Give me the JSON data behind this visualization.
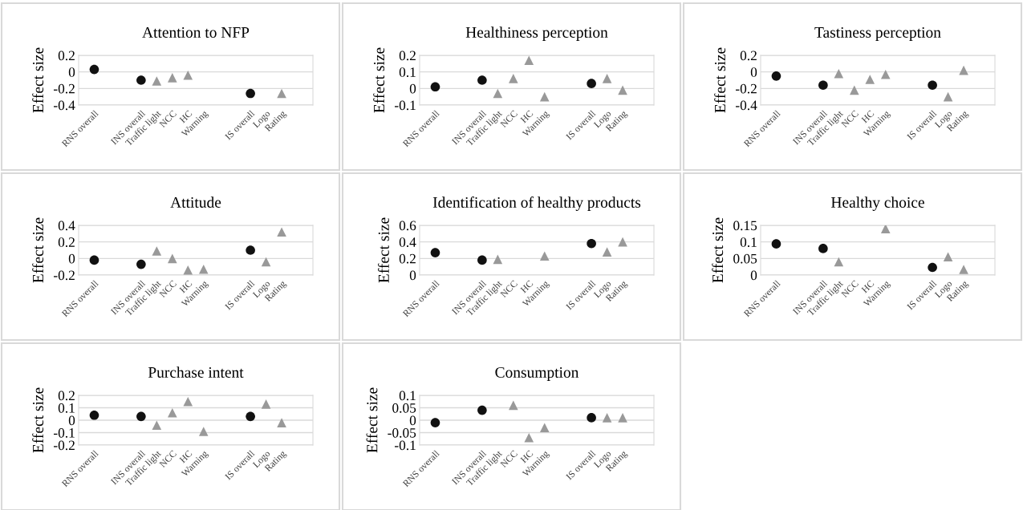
{
  "chart_data": [
    {
      "type": "scatter",
      "title": "Attention to NFP",
      "ylabel": "Effect size",
      "categories": [
        "RNS overall",
        null,
        null,
        "INS overall",
        "Traffic light",
        "NCC",
        "HC",
        "Warning",
        null,
        null,
        "IS overall",
        "Logo",
        "Rating"
      ],
      "ylim": [
        -0.4,
        0.2
      ],
      "yticks": [
        -0.4,
        -0.2,
        0,
        0.2
      ],
      "grid": "y",
      "series": [
        {
          "color": "#111111",
          "marker": "circle",
          "values": [
            0.03,
            null,
            null,
            -0.1,
            null,
            null,
            null,
            null,
            null,
            null,
            -0.26,
            null,
            null
          ]
        },
        {
          "color": "#999999",
          "marker": "triangle",
          "values": [
            null,
            null,
            null,
            null,
            -0.11,
            -0.07,
            -0.04,
            null,
            null,
            null,
            null,
            null,
            -0.26
          ]
        }
      ]
    },
    {
      "type": "scatter",
      "title": "Healthiness perception",
      "ylabel": "Effect size",
      "categories": [
        "RNS overall",
        null,
        null,
        "INS overall",
        "Traffic light",
        "NCC",
        "HC",
        "Warning",
        null,
        null,
        "IS overall",
        "Logo",
        "Rating"
      ],
      "ylim": [
        -0.1,
        0.2
      ],
      "yticks": [
        -0.1,
        0,
        0.1,
        0.2
      ],
      "grid": "y",
      "series": [
        {
          "color": "#111111",
          "marker": "circle",
          "values": [
            0.01,
            null,
            null,
            0.05,
            null,
            null,
            null,
            null,
            null,
            null,
            0.03,
            null,
            null
          ]
        },
        {
          "color": "#999999",
          "marker": "triangle",
          "values": [
            null,
            null,
            null,
            null,
            -0.03,
            0.06,
            0.17,
            -0.05,
            null,
            null,
            null,
            0.06,
            -0.01
          ]
        }
      ]
    },
    {
      "type": "scatter",
      "title": "Tastiness perception",
      "ylabel": "Effect size",
      "categories": [
        "RNS overall",
        null,
        null,
        "INS overall",
        "Traffic light",
        "NCC",
        "HC",
        "Warning",
        null,
        null,
        "IS overall",
        "Logo",
        "Rating"
      ],
      "ylim": [
        -0.4,
        0.2
      ],
      "yticks": [
        -0.4,
        -0.2,
        0,
        0.2
      ],
      "grid": "y",
      "series": [
        {
          "color": "#111111",
          "marker": "circle",
          "values": [
            -0.05,
            null,
            null,
            -0.16,
            null,
            null,
            null,
            null,
            null,
            null,
            -0.16,
            null,
            null
          ]
        },
        {
          "color": "#999999",
          "marker": "triangle",
          "values": [
            null,
            null,
            null,
            null,
            -0.02,
            -0.22,
            -0.09,
            -0.03,
            null,
            null,
            null,
            -0.3,
            0.02
          ]
        }
      ]
    },
    {
      "type": "scatter",
      "title": "Attitude",
      "ylabel": "Effect size",
      "categories": [
        "RNS overall",
        null,
        null,
        "INS overall",
        "Traffic light",
        "NCC",
        "HC",
        "Warning",
        null,
        null,
        "IS overall",
        "Logo",
        "Rating"
      ],
      "ylim": [
        -0.2,
        0.4
      ],
      "yticks": [
        -0.2,
        0,
        0.2,
        0.4
      ],
      "grid": "y",
      "series": [
        {
          "color": "#111111",
          "marker": "circle",
          "values": [
            -0.02,
            null,
            null,
            -0.07,
            null,
            null,
            null,
            null,
            null,
            null,
            0.1,
            null,
            null
          ]
        },
        {
          "color": "#999999",
          "marker": "triangle",
          "values": [
            null,
            null,
            null,
            null,
            0.09,
            0.0,
            -0.14,
            -0.13,
            null,
            null,
            null,
            -0.04,
            0.32
          ]
        }
      ]
    },
    {
      "type": "scatter",
      "title": "Identification of healthy products",
      "ylabel": "Effect size",
      "categories": [
        "RNS overall",
        null,
        null,
        "INS overall",
        "Traffic light",
        "NCC",
        "HC",
        "Warning",
        null,
        null,
        "IS overall",
        "Logo",
        "Rating"
      ],
      "ylim": [
        0,
        0.6
      ],
      "yticks": [
        0,
        0.2,
        0.4,
        0.6
      ],
      "grid": "y",
      "series": [
        {
          "color": "#111111",
          "marker": "circle",
          "values": [
            0.27,
            null,
            null,
            0.18,
            null,
            null,
            null,
            null,
            null,
            null,
            0.38,
            null,
            null
          ]
        },
        {
          "color": "#999999",
          "marker": "triangle",
          "values": [
            null,
            null,
            null,
            null,
            0.19,
            null,
            null,
            0.23,
            null,
            null,
            null,
            0.28,
            0.4
          ]
        }
      ]
    },
    {
      "type": "scatter",
      "title": "Healthy choice",
      "ylabel": "Effect size",
      "categories": [
        "RNS overall",
        null,
        null,
        "INS overall",
        "Traffic light",
        "NCC",
        "HC",
        "Warning",
        null,
        null,
        "IS overall",
        "Logo",
        "Rating"
      ],
      "ylim": [
        0,
        0.15
      ],
      "yticks": [
        0,
        0.05,
        0.1,
        0.15
      ],
      "grid": "y",
      "series": [
        {
          "color": "#111111",
          "marker": "circle",
          "values": [
            0.094,
            null,
            null,
            0.08,
            null,
            null,
            null,
            null,
            null,
            null,
            0.023,
            null,
            null
          ]
        },
        {
          "color": "#999999",
          "marker": "triangle",
          "values": [
            null,
            null,
            null,
            null,
            0.04,
            null,
            null,
            0.14,
            null,
            null,
            null,
            0.055,
            0.017
          ]
        }
      ]
    },
    {
      "type": "scatter",
      "title": "Purchase intent",
      "ylabel": "Effect size",
      "categories": [
        "RNS overall",
        null,
        null,
        "INS overall",
        "Traffic light",
        "NCC",
        "HC",
        "Warning",
        null,
        null,
        "IS overall",
        "Logo",
        "Rating"
      ],
      "ylim": [
        -0.2,
        0.2
      ],
      "yticks": [
        -0.2,
        -0.1,
        0,
        0.1,
        0.2
      ],
      "grid": "y",
      "series": [
        {
          "color": "#111111",
          "marker": "circle",
          "values": [
            0.04,
            null,
            null,
            0.03,
            null,
            null,
            null,
            null,
            null,
            null,
            0.03,
            null,
            null
          ]
        },
        {
          "color": "#999999",
          "marker": "triangle",
          "values": [
            null,
            null,
            null,
            null,
            -0.04,
            0.06,
            0.15,
            -0.09,
            null,
            null,
            null,
            0.13,
            -0.02
          ]
        }
      ]
    },
    {
      "type": "scatter",
      "title": "Consumption",
      "ylabel": "Effect size",
      "categories": [
        "RNS overall",
        null,
        null,
        "INS overall",
        "Traffic light",
        "NCC",
        "HC",
        "Warning",
        null,
        null,
        "IS overall",
        "Logo",
        "Rating"
      ],
      "ylim": [
        -0.1,
        0.1
      ],
      "yticks": [
        -0.1,
        -0.05,
        0,
        0.05,
        0.1
      ],
      "grid": "y",
      "series": [
        {
          "color": "#111111",
          "marker": "circle",
          "values": [
            -0.01,
            null,
            null,
            0.04,
            null,
            null,
            null,
            null,
            null,
            null,
            0.01,
            null,
            null
          ]
        },
        {
          "color": "#999999",
          "marker": "triangle",
          "values": [
            null,
            null,
            null,
            null,
            null,
            0.06,
            -0.07,
            -0.03,
            null,
            null,
            null,
            0.01,
            0.01
          ]
        }
      ]
    }
  ]
}
